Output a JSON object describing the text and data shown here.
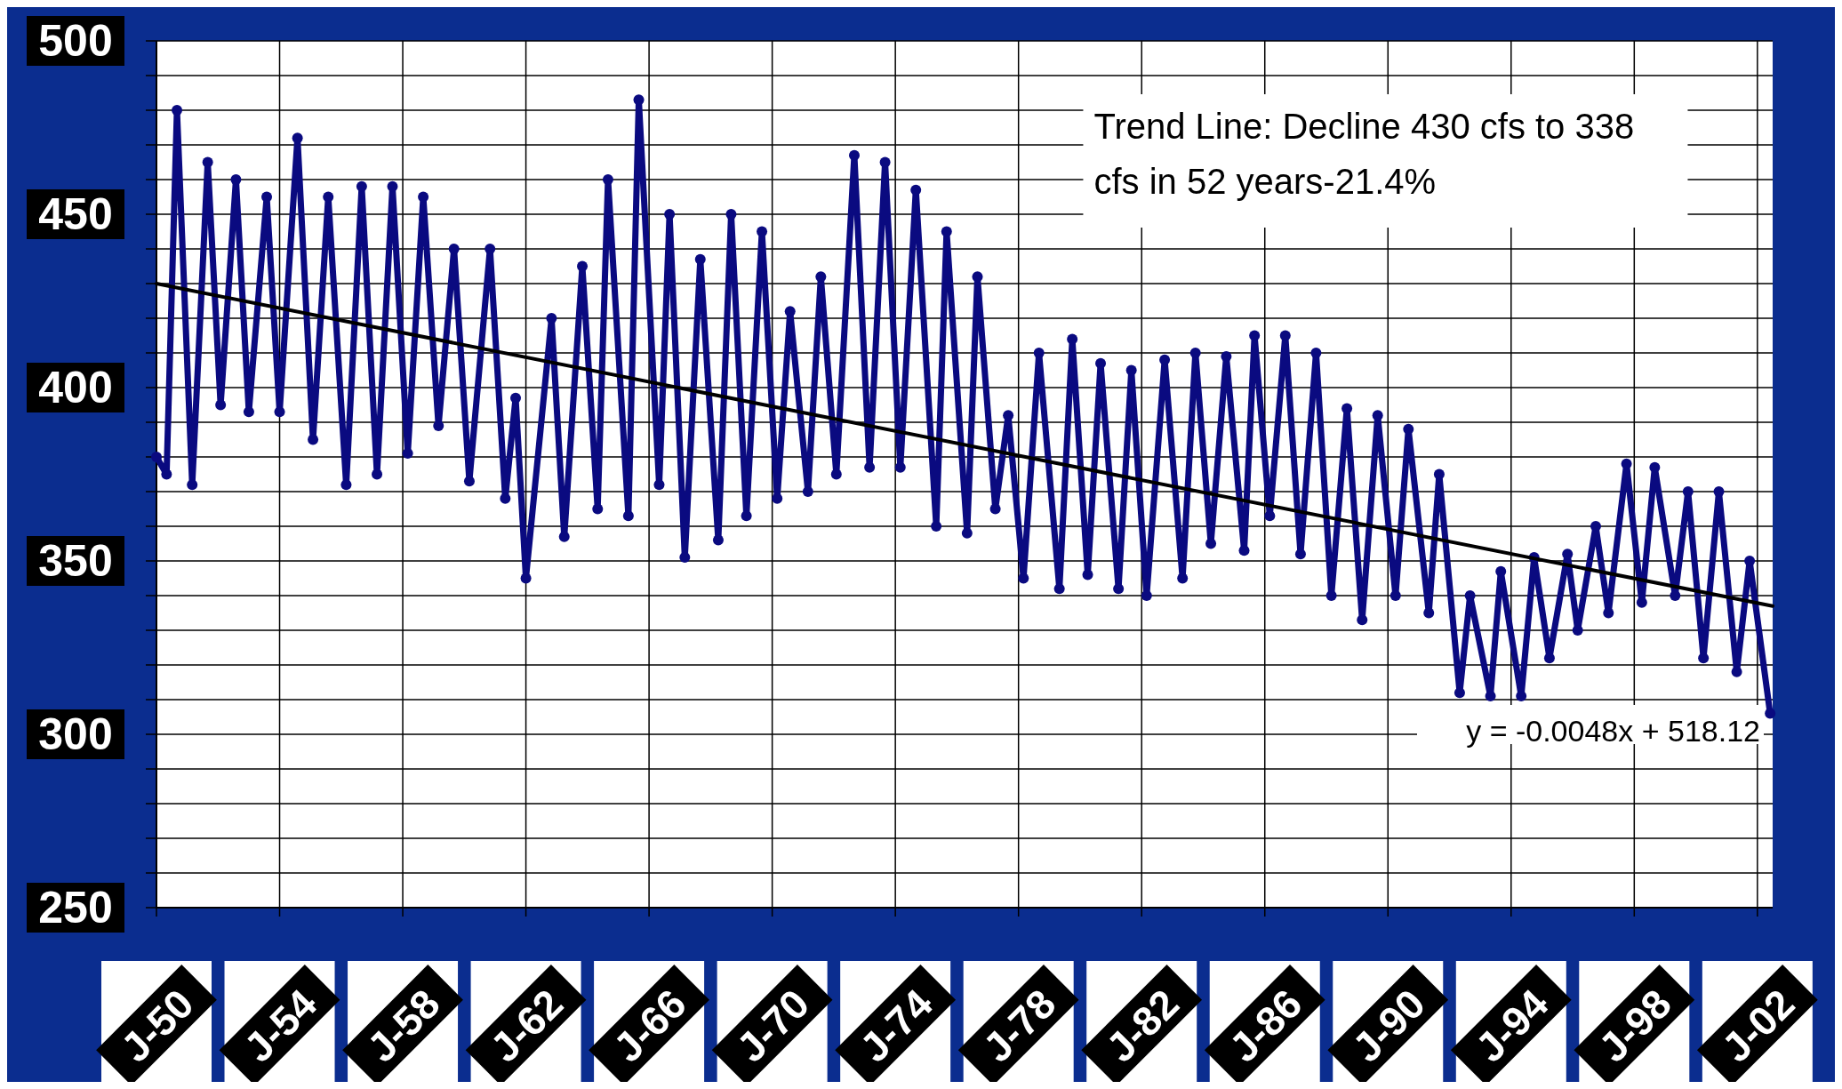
{
  "chart_data": {
    "type": "line",
    "annotations": [
      "Trend Line: Decline 430 cfs to 338 cfs in 52 years-21.4%",
      "y = -0.0048x + 518.12"
    ],
    "xlim": [
      "1950-01",
      "2002-07"
    ],
    "xticks": [
      {
        "value": "1950-01",
        "label": "J-50"
      },
      {
        "value": "1954-01",
        "label": "J-54"
      },
      {
        "value": "1958-01",
        "label": "J-58"
      },
      {
        "value": "1962-01",
        "label": "J-62"
      },
      {
        "value": "1966-01",
        "label": "J-66"
      },
      {
        "value": "1970-01",
        "label": "J-70"
      },
      {
        "value": "1974-01",
        "label": "J-74"
      },
      {
        "value": "1978-01",
        "label": "J-78"
      },
      {
        "value": "1982-01",
        "label": "J-82"
      },
      {
        "value": "1986-01",
        "label": "J-86"
      },
      {
        "value": "1990-01",
        "label": "J-90"
      },
      {
        "value": "1994-01",
        "label": "J-94"
      },
      {
        "value": "1998-01",
        "label": "J-98"
      },
      {
        "value": "2002-01",
        "label": "J-02"
      }
    ],
    "ylim": [
      250,
      500
    ],
    "yticks": [
      250,
      {
        "value": 260,
        "label": null
      },
      {
        "value": 270,
        "label": null
      },
      {
        "value": 280,
        "label": null
      },
      {
        "value": 290,
        "label": null
      },
      300,
      {
        "value": 310,
        "label": null
      },
      {
        "value": 320,
        "label": null
      },
      {
        "value": 330,
        "label": null
      },
      {
        "value": 340,
        "label": null
      },
      350,
      {
        "value": 360,
        "label": null
      },
      {
        "value": 370,
        "label": null
      },
      {
        "value": 380,
        "label": null
      },
      {
        "value": 390,
        "label": null
      },
      400,
      {
        "value": 410,
        "label": null
      },
      {
        "value": 420,
        "label": null
      },
      {
        "value": 430,
        "label": null
      },
      {
        "value": 440,
        "label": null
      },
      450,
      {
        "value": 460,
        "label": null
      },
      {
        "value": 470,
        "label": null
      },
      {
        "value": 480,
        "label": null
      },
      {
        "value": 490,
        "label": null
      },
      500
    ],
    "grid": true,
    "series": [
      {
        "color": "#0a0a80",
        "marker": "circle",
        "x": [
          "1950-01",
          "1950-05",
          "1950-09",
          "1951-03",
          "1951-09",
          "1952-02",
          "1952-08",
          "1953-01",
          "1953-08",
          "1954-01",
          "1954-08",
          "1955-02",
          "1955-08",
          "1956-03",
          "1956-09",
          "1957-03",
          "1957-09",
          "1958-03",
          "1958-09",
          "1959-03",
          "1959-09",
          "1960-03",
          "1960-11",
          "1961-05",
          "1961-09",
          "1962-01",
          "1962-11",
          "1963-04",
          "1963-11",
          "1964-05",
          "1964-09",
          "1965-05",
          "1965-09",
          "1966-05",
          "1966-09",
          "1967-03",
          "1967-09",
          "1968-04",
          "1968-09",
          "1969-03",
          "1969-09",
          "1970-03",
          "1970-08",
          "1971-03",
          "1971-08",
          "1972-02",
          "1972-09",
          "1973-03",
          "1973-09",
          "1974-03",
          "1974-09",
          "1975-05",
          "1975-09",
          "1976-05",
          "1976-09",
          "1977-04",
          "1977-09",
          "1978-03",
          "1978-09",
          "1979-05",
          "1979-10",
          "1980-04",
          "1980-09",
          "1981-04",
          "1981-09",
          "1982-03",
          "1982-10",
          "1983-05",
          "1983-10",
          "1984-04",
          "1984-10",
          "1985-05",
          "1985-09",
          "1986-03",
          "1986-09",
          "1987-03",
          "1987-09",
          "1988-03",
          "1988-09",
          "1989-03",
          "1989-09",
          "1990-04",
          "1990-09",
          "1991-05",
          "1991-09",
          "1992-05",
          "1992-09",
          "1993-05",
          "1993-09",
          "1994-05",
          "1994-10",
          "1995-04",
          "1995-11",
          "1996-03",
          "1996-10",
          "1997-03",
          "1997-10",
          "1998-04",
          "1998-09",
          "1999-05",
          "1999-10",
          "2000-04",
          "2000-10",
          "2001-05",
          "2001-10",
          "2002-06"
        ],
        "values": [
          380,
          375,
          480,
          372,
          465,
          395,
          460,
          393,
          455,
          393,
          472,
          385,
          455,
          372,
          458,
          375,
          458,
          381,
          455,
          389,
          440,
          373,
          440,
          368,
          397,
          345,
          420,
          357,
          435,
          365,
          460,
          363,
          483,
          372,
          450,
          351,
          437,
          356,
          450,
          363,
          445,
          368,
          422,
          370,
          432,
          375,
          467,
          377,
          465,
          377,
          457,
          360,
          445,
          358,
          432,
          365,
          392,
          345,
          410,
          342,
          414,
          346,
          407,
          342,
          405,
          340,
          408,
          345,
          410,
          355,
          409,
          353,
          415,
          363,
          415,
          352,
          410,
          340,
          394,
          333,
          392,
          340,
          388,
          335,
          375,
          312,
          340,
          311,
          347,
          311,
          351,
          322,
          352,
          330,
          360,
          335,
          378,
          338,
          377,
          340,
          370,
          322,
          370,
          318,
          350,
          306
        ]
      },
      {
        "color": "#000000",
        "marker": "none",
        "x": [
          "1950-01",
          "2002-07"
        ],
        "values": [
          430,
          337
        ]
      }
    ]
  }
}
